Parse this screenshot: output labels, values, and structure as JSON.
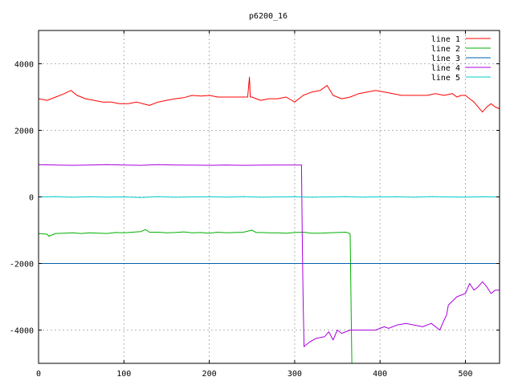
{
  "chart_data": {
    "type": "line",
    "title": "p6200_16",
    "xlabel": "",
    "ylabel": "",
    "xlim": [
      0,
      540
    ],
    "ylim": [
      -5000,
      5000
    ],
    "xticks": [
      0,
      100,
      200,
      300,
      400,
      500
    ],
    "yticks": [
      -4000,
      -2000,
      0,
      2000,
      4000
    ],
    "grid": true,
    "legend_position": "top-right",
    "series": [
      {
        "name": "line 1",
        "color": "#ff0000",
        "x": [
          0,
          10,
          20,
          30,
          38,
          45,
          55,
          65,
          75,
          85,
          95,
          105,
          115,
          125,
          130,
          140,
          150,
          160,
          170,
          180,
          190,
          200,
          210,
          220,
          230,
          240,
          245,
          247,
          248,
          250,
          255,
          260,
          270,
          280,
          290,
          300,
          305,
          310,
          315,
          320,
          330,
          338,
          345,
          355,
          365,
          375,
          385,
          395,
          405,
          415,
          425,
          435,
          445,
          455,
          465,
          475,
          485,
          490,
          495,
          500,
          505,
          510,
          515,
          520,
          525,
          530,
          535,
          540
        ],
        "y": [
          2950,
          2900,
          3000,
          3100,
          3200,
          3050,
          2950,
          2900,
          2850,
          2850,
          2800,
          2800,
          2850,
          2780,
          2750,
          2850,
          2900,
          2950,
          2980,
          3050,
          3030,
          3050,
          3000,
          3000,
          3000,
          3000,
          3000,
          3600,
          3000,
          3000,
          2950,
          2900,
          2950,
          2950,
          3000,
          2850,
          2950,
          3050,
          3100,
          3150,
          3200,
          3350,
          3050,
          2950,
          3000,
          3100,
          3150,
          3200,
          3150,
          3100,
          3050,
          3050,
          3050,
          3050,
          3100,
          3050,
          3100,
          3000,
          3050,
          3050,
          2950,
          2850,
          2700,
          2550,
          2700,
          2800,
          2700,
          2650
        ]
      },
      {
        "name": "line 2",
        "color": "#00b000",
        "x": [
          0,
          10,
          12,
          20,
          30,
          40,
          50,
          60,
          70,
          80,
          90,
          100,
          110,
          120,
          125,
          130,
          140,
          150,
          160,
          170,
          180,
          190,
          200,
          210,
          220,
          230,
          240,
          250,
          255,
          260,
          270,
          280,
          290,
          300,
          310,
          320,
          330,
          340,
          350,
          360,
          363,
          365,
          366,
          367
        ],
        "y": [
          -1100,
          -1120,
          -1180,
          -1100,
          -1090,
          -1080,
          -1100,
          -1080,
          -1090,
          -1100,
          -1070,
          -1080,
          -1060,
          -1040,
          -980,
          -1060,
          -1060,
          -1080,
          -1070,
          -1050,
          -1080,
          -1070,
          -1090,
          -1060,
          -1080,
          -1070,
          -1060,
          -1000,
          -1070,
          -1070,
          -1080,
          -1080,
          -1090,
          -1070,
          -1060,
          -1090,
          -1090,
          -1080,
          -1070,
          -1060,
          -1080,
          -1120,
          -3000,
          -5000
        ]
      },
      {
        "name": "line 3",
        "color": "#0060ad",
        "x": [
          0,
          540
        ],
        "y": [
          -2000,
          -2000
        ]
      },
      {
        "name": "line 4",
        "color": "#aa00dd",
        "x": [
          0,
          20,
          40,
          60,
          80,
          100,
          120,
          140,
          160,
          180,
          200,
          220,
          240,
          260,
          280,
          300,
          308,
          309,
          310,
          311,
          313,
          318,
          325,
          335,
          340,
          345,
          350,
          355,
          365,
          375,
          385,
          395,
          400,
          405,
          410,
          420,
          430,
          440,
          450,
          460,
          470,
          475,
          478,
          480,
          490,
          500,
          505,
          510,
          515,
          520,
          525,
          530,
          535,
          540
        ],
        "y": [
          970,
          960,
          950,
          960,
          970,
          960,
          950,
          970,
          960,
          955,
          950,
          960,
          950,
          955,
          960,
          960,
          960,
          -1500,
          -3200,
          -4500,
          -4450,
          -4350,
          -4250,
          -4200,
          -4050,
          -4300,
          -4000,
          -4100,
          -4000,
          -4000,
          -4000,
          -4000,
          -3950,
          -3900,
          -3950,
          -3850,
          -3800,
          -3850,
          -3900,
          -3800,
          -4000,
          -3700,
          -3550,
          -3250,
          -3000,
          -2900,
          -2600,
          -2800,
          -2700,
          -2550,
          -2700,
          -2900,
          -2800,
          -2800
        ]
      },
      {
        "name": "line 5",
        "color": "#00cccc",
        "x": [
          0,
          20,
          40,
          60,
          80,
          100,
          120,
          140,
          160,
          180,
          200,
          220,
          240,
          260,
          280,
          300,
          320,
          340,
          360,
          380,
          400,
          420,
          440,
          460,
          480,
          500,
          520,
          540
        ],
        "y": [
          0,
          10,
          -10,
          5,
          -5,
          0,
          -20,
          10,
          -10,
          0,
          5,
          -5,
          10,
          -10,
          0,
          5,
          -10,
          0,
          10,
          -5,
          0,
          5,
          -10,
          10,
          0,
          -5,
          5,
          0
        ]
      }
    ]
  }
}
